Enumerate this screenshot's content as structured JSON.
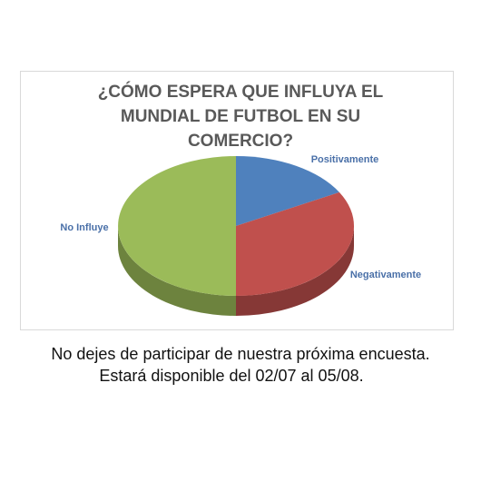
{
  "chart_data": {
    "type": "pie3d",
    "title": "¿CÓMO ESPERA QUE INFLUYA EL MUNDIAL DE FUTBOL EN SU COMERCIO?",
    "categories": [
      "Positivamente",
      "Negativamente",
      "No Influye"
    ],
    "values": [
      17,
      33,
      50
    ],
    "colors": [
      "#4f81bd",
      "#c0504d",
      "#9bbb59"
    ]
  },
  "notes": [
    "No dejes de participar de nuestra próxima encuesta.",
    "Estará disponible del 02/07 al 05/08."
  ]
}
